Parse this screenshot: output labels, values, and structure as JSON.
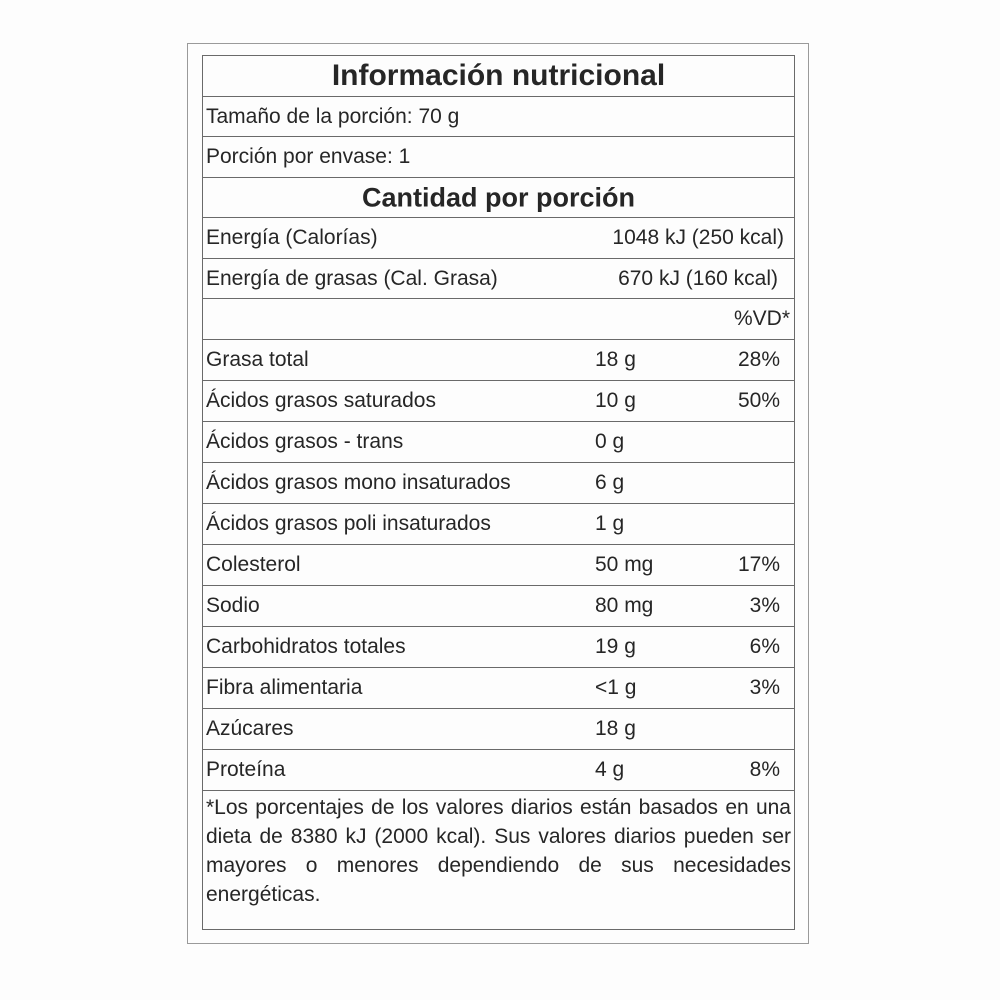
{
  "title": "Información nutricional",
  "serving_size": "Tamaño de la porción: 70 g",
  "servings_per_container": "Porción por envase: 1",
  "amount_header": "Cantidad por porción",
  "energy": {
    "label": "Energía (Calorías)",
    "value": "1048 kJ (250 kcal)"
  },
  "fat_energy": {
    "label": "Energía de grasas (Cal. Grasa)",
    "value": "670 kJ (160 kcal)"
  },
  "vd_header": "%VD*",
  "nutrients": [
    {
      "name": "Grasa total",
      "amount": "18 g",
      "vd": "28%"
    },
    {
      "name": "Ácidos grasos saturados",
      "amount": "10 g",
      "vd": "50%"
    },
    {
      "name": "Ácidos grasos - trans",
      "amount": "0 g",
      "vd": ""
    },
    {
      "name": "Ácidos grasos mono insaturados",
      "amount": "6 g",
      "vd": ""
    },
    {
      "name": "Ácidos grasos poli insaturados",
      "amount": "1 g",
      "vd": ""
    },
    {
      "name": "Colesterol",
      "amount": "50 mg",
      "vd": "17%"
    },
    {
      "name": "Sodio",
      "amount": "80 mg",
      "vd": "3%"
    },
    {
      "name": "Carbohidratos totales",
      "amount": "19 g",
      "vd": "6%"
    },
    {
      "name": "Fibra alimentaria",
      "amount": "<1 g",
      "vd": "3%"
    },
    {
      "name": "Azúcares",
      "amount": "18 g",
      "vd": ""
    },
    {
      "name": "Proteína",
      "amount": "4 g",
      "vd": "8%"
    }
  ],
  "footnote": "*Los porcentajes de los valores diarios están basados en una dieta de 8380 kJ (2000 kcal). Sus valores diarios pueden ser mayores o menores dependiendo de sus necesidades energéticas."
}
